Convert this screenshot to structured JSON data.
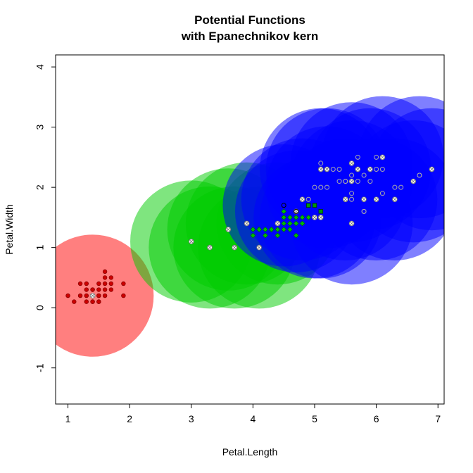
{
  "chart_data": {
    "type": "scatter",
    "title": "Potential Functions",
    "subtitle": "with Epanechnikov kern",
    "xlabel": "Petal.Length",
    "ylabel": "Petal.Width",
    "xlim": [
      0.8,
      7.1
    ],
    "ylim": [
      -1.6,
      4.2
    ],
    "x_ticks": [
      1,
      2,
      3,
      4,
      5,
      6,
      7
    ],
    "x_tick_labels": [
      "1",
      "2",
      "3",
      "4",
      "5",
      "6",
      "7"
    ],
    "y_ticks": [
      -1,
      0,
      1,
      2,
      3,
      4
    ],
    "y_tick_labels": [
      "-1",
      "0",
      "1",
      "2",
      "3",
      "4"
    ],
    "grid": false,
    "potential_circles": [
      {
        "class": "red",
        "color": "#ff0000",
        "opacity": 0.5,
        "x": 1.4,
        "y": 0.2,
        "radius_x": 0.99
      },
      {
        "class": "green",
        "color": "#00cc00",
        "opacity": 0.5,
        "x": 3.0,
        "y": 1.1,
        "radius_x": 0.99
      },
      {
        "class": "green",
        "color": "#00cc00",
        "opacity": 0.5,
        "x": 3.3,
        "y": 1.0,
        "radius_x": 0.99
      },
      {
        "class": "green",
        "color": "#00cc00",
        "opacity": 0.5,
        "x": 3.6,
        "y": 1.3,
        "radius_x": 0.99
      },
      {
        "class": "green",
        "color": "#00cc00",
        "opacity": 0.5,
        "x": 3.7,
        "y": 1.0,
        "radius_x": 0.99
      },
      {
        "class": "green",
        "color": "#00cc00",
        "opacity": 0.5,
        "x": 3.9,
        "y": 1.4,
        "radius_x": 0.99
      },
      {
        "class": "green",
        "color": "#00cc00",
        "opacity": 0.5,
        "x": 4.1,
        "y": 1.0,
        "radius_x": 0.99
      },
      {
        "class": "green",
        "color": "#00cc00",
        "opacity": 0.5,
        "x": 4.4,
        "y": 1.4,
        "radius_x": 0.99
      },
      {
        "class": "blue",
        "color": "#0000ff",
        "opacity": 0.5,
        "x": 4.5,
        "y": 1.7,
        "radius_x": 0.99
      },
      {
        "class": "blue",
        "color": "#0000ff",
        "opacity": 0.5,
        "x": 4.7,
        "y": 1.6,
        "radius_x": 0.99
      },
      {
        "class": "blue",
        "color": "#0000ff",
        "opacity": 0.5,
        "x": 4.8,
        "y": 1.8,
        "radius_x": 0.99
      },
      {
        "class": "blue",
        "color": "#0000ff",
        "opacity": 0.5,
        "x": 5.0,
        "y": 1.5,
        "radius_x": 0.99
      },
      {
        "class": "blue",
        "color": "#0000ff",
        "opacity": 0.5,
        "x": 5.1,
        "y": 1.5,
        "radius_x": 0.99
      },
      {
        "class": "blue",
        "color": "#0000ff",
        "opacity": 0.5,
        "x": 5.1,
        "y": 2.3,
        "radius_x": 0.99
      },
      {
        "class": "blue",
        "color": "#0000ff",
        "opacity": 0.5,
        "x": 5.2,
        "y": 2.3,
        "radius_x": 0.99
      },
      {
        "class": "blue",
        "color": "#0000ff",
        "opacity": 0.5,
        "x": 5.2,
        "y": 2.0,
        "radius_x": 0.99
      },
      {
        "class": "blue",
        "color": "#0000ff",
        "opacity": 0.5,
        "x": 5.5,
        "y": 1.8,
        "radius_x": 0.99
      },
      {
        "class": "blue",
        "color": "#0000ff",
        "opacity": 0.5,
        "x": 5.6,
        "y": 2.4,
        "radius_x": 0.99
      },
      {
        "class": "blue",
        "color": "#0000ff",
        "opacity": 0.5,
        "x": 5.6,
        "y": 2.1,
        "radius_x": 0.99
      },
      {
        "class": "blue",
        "color": "#0000ff",
        "opacity": 0.5,
        "x": 5.6,
        "y": 1.4,
        "radius_x": 0.99
      },
      {
        "class": "blue",
        "color": "#0000ff",
        "opacity": 0.5,
        "x": 5.9,
        "y": 2.3,
        "radius_x": 0.99
      },
      {
        "class": "blue",
        "color": "#0000ff",
        "opacity": 0.5,
        "x": 6.0,
        "y": 1.8,
        "radius_x": 0.99
      },
      {
        "class": "blue",
        "color": "#0000ff",
        "opacity": 0.5,
        "x": 6.1,
        "y": 2.5,
        "radius_x": 0.99
      },
      {
        "class": "blue",
        "color": "#0000ff",
        "opacity": 0.5,
        "x": 6.3,
        "y": 1.8,
        "radius_x": 0.99
      },
      {
        "class": "blue",
        "color": "#0000ff",
        "opacity": 0.5,
        "x": 6.6,
        "y": 2.1,
        "radius_x": 0.99
      },
      {
        "class": "blue",
        "color": "#0000ff",
        "opacity": 0.5,
        "x": 6.9,
        "y": 2.3,
        "radius_x": 0.99
      },
      {
        "class": "blue",
        "color": "#0000ff",
        "opacity": 0.5,
        "x": 6.7,
        "y": 2.5,
        "radius_x": 0.99
      }
    ],
    "series": [
      {
        "class": "setosa",
        "marker": "filled-circle",
        "color": "#cc0000",
        "edge": "#8b0000",
        "x": [
          1.4,
          1.4,
          1.3,
          1.5,
          1.4,
          1.7,
          1.4,
          1.5,
          1.5,
          1.6,
          1.9,
          1.6,
          1.2,
          1.1,
          1.3,
          1.3,
          1.6,
          1.7,
          1.9,
          1.0,
          1.5,
          1.2,
          1.5,
          1.6,
          1.4,
          1.6,
          1.4,
          1.7,
          1.3,
          1.5
        ],
        "y": [
          0.2,
          0.1,
          0.3,
          0.2,
          0.3,
          0.4,
          0.3,
          0.1,
          0.4,
          0.2,
          0.4,
          0.6,
          0.2,
          0.1,
          0.1,
          0.4,
          0.5,
          0.3,
          0.2,
          0.2,
          0.3,
          0.4,
          0.2,
          0.4,
          0.1,
          0.3,
          0.2,
          0.5,
          0.2,
          0.1
        ]
      },
      {
        "class": "versicolor",
        "marker": "filled-diamond",
        "color": "#00bb00",
        "edge": "#006400",
        "x": [
          4.0,
          4.1,
          4.2,
          4.3,
          4.4,
          4.5,
          4.5,
          4.6,
          4.6,
          4.7,
          4.7,
          4.8,
          4.5,
          4.4,
          4.2,
          4.1,
          4.6,
          4.3,
          4.4,
          4.5,
          4.7,
          4.0,
          4.8,
          4.9,
          4.5
        ],
        "y": [
          1.3,
          1.3,
          1.3,
          1.3,
          1.3,
          1.5,
          1.3,
          1.4,
          1.5,
          1.4,
          1.2,
          1.4,
          1.6,
          1.2,
          1.2,
          1.3,
          1.3,
          1.3,
          1.4,
          1.4,
          1.5,
          1.2,
          1.5,
          1.5,
          1.5
        ]
      },
      {
        "class": "virginica",
        "marker": "open-circle",
        "color": "#bbbbbb",
        "edge": "#aaaaaa",
        "x": [
          5.1,
          5.3,
          5.4,
          5.5,
          5.6,
          5.6,
          5.7,
          5.7,
          5.8,
          5.8,
          6.0,
          6.1,
          6.1,
          6.3,
          6.4,
          6.7,
          6.9,
          5.0,
          5.2,
          5.4,
          5.5,
          5.8,
          5.9,
          6.6,
          5.7,
          5.9,
          6.0,
          5.1,
          4.9,
          5.6,
          5.8,
          6.1,
          6.7,
          5.6
        ],
        "y": [
          2.4,
          2.3,
          2.1,
          2.1,
          2.2,
          2.4,
          2.5,
          2.3,
          2.2,
          1.8,
          2.5,
          2.3,
          1.9,
          2.0,
          2.0,
          2.2,
          2.3,
          2.0,
          2.0,
          2.3,
          2.1,
          1.6,
          2.1,
          2.1,
          2.1,
          2.3,
          2.3,
          2.0,
          1.8,
          1.8,
          1.6,
          2.5,
          2.2,
          1.9
        ]
      },
      {
        "class": "prototypes",
        "marker": "x-in-circle",
        "color": "#ffffff",
        "edge": "#777777",
        "x": [
          1.4,
          3.0,
          3.3,
          3.6,
          3.7,
          3.9,
          4.1,
          4.4,
          4.7,
          5.0,
          5.1,
          5.1,
          5.2,
          5.5,
          5.6,
          5.6,
          5.6,
          5.8,
          5.9,
          6.0,
          6.1,
          6.3,
          6.6,
          6.9,
          4.8,
          5.5,
          5.7
        ],
        "y": [
          0.2,
          1.1,
          1.0,
          1.3,
          1.0,
          1.4,
          1.0,
          1.4,
          1.6,
          1.5,
          1.5,
          2.3,
          2.3,
          1.8,
          2.4,
          2.1,
          1.4,
          1.8,
          2.3,
          1.8,
          2.5,
          1.8,
          2.1,
          2.3,
          1.8,
          1.8,
          2.3
        ]
      },
      {
        "class": "highlighted",
        "marker": "filled-square",
        "color": "#009900",
        "edge": "#003300",
        "x": [
          4.9,
          5.1,
          5.0
        ],
        "y": [
          1.7,
          1.6,
          1.7
        ]
      },
      {
        "class": "highlighted-ring",
        "marker": "open-circle",
        "color": "#ffffff",
        "edge": "#000000",
        "x": [
          4.5,
          4.7
        ],
        "y": [
          1.7,
          1.6
        ]
      }
    ]
  }
}
